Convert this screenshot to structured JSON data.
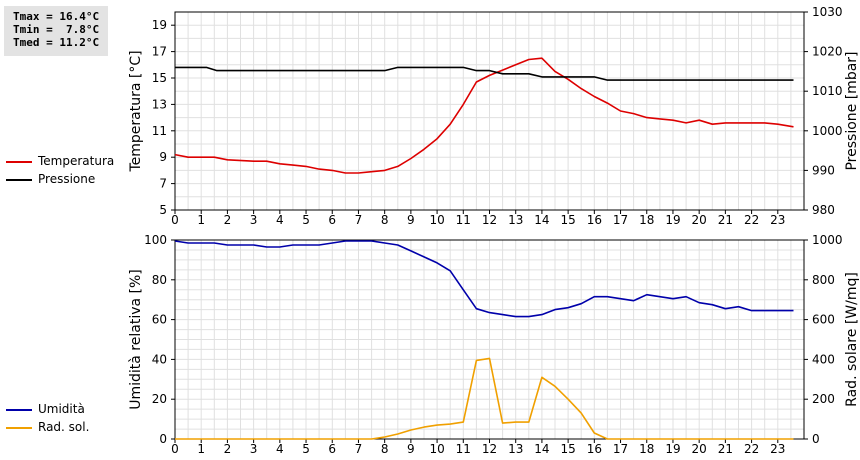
{
  "stats": [
    "Tmax = 16.4°C",
    "Tmin =  7.8°C",
    "Tmed = 11.2°C"
  ],
  "chart_data": [
    {
      "type": "line",
      "xlim": [
        0,
        24
      ],
      "x_ticks": [
        0,
        1,
        2,
        3,
        4,
        5,
        6,
        7,
        8,
        9,
        10,
        11,
        12,
        13,
        14,
        15,
        16,
        17,
        18,
        19,
        20,
        21,
        22,
        23
      ],
      "ylabel": "Temperatura [°C]",
      "ylim": [
        5,
        20
      ],
      "y_ticks": [
        5,
        7,
        9,
        11,
        13,
        15,
        17,
        19
      ],
      "y2label": "Pressione [mbar]",
      "y2lim": [
        980,
        1030
      ],
      "y2_ticks": [
        980,
        990,
        1000,
        1010,
        1020,
        1030
      ],
      "grid": true,
      "legend_position": "left",
      "series": [
        {
          "name": "Temperatura",
          "color": "#dd0000",
          "axis": "left",
          "points": [
            [
              0,
              9.2
            ],
            [
              0.5,
              9.0
            ],
            [
              1.5,
              9.0
            ],
            [
              2,
              8.8
            ],
            [
              3,
              8.7
            ],
            [
              3.5,
              8.7
            ],
            [
              4,
              8.5
            ],
            [
              4.5,
              8.4
            ],
            [
              5,
              8.3
            ],
            [
              5.5,
              8.1
            ],
            [
              6,
              8.0
            ],
            [
              6.5,
              7.8
            ],
            [
              7,
              7.8
            ],
            [
              7.5,
              7.9
            ],
            [
              8,
              8.0
            ],
            [
              8.5,
              8.3
            ],
            [
              9,
              8.9
            ],
            [
              9.5,
              9.6
            ],
            [
              10,
              10.4
            ],
            [
              10.5,
              11.5
            ],
            [
              11,
              13.0
            ],
            [
              11.5,
              14.7
            ],
            [
              12,
              15.2
            ],
            [
              12.5,
              15.6
            ],
            [
              13,
              16.0
            ],
            [
              13.5,
              16.4
            ],
            [
              14,
              16.5
            ],
            [
              14.5,
              15.5
            ],
            [
              15,
              14.9
            ],
            [
              15.5,
              14.2
            ],
            [
              16,
              13.6
            ],
            [
              16.5,
              13.1
            ],
            [
              17,
              12.5
            ],
            [
              17.5,
              12.3
            ],
            [
              18,
              12.0
            ],
            [
              18.5,
              11.9
            ],
            [
              19,
              11.8
            ],
            [
              19.5,
              11.6
            ],
            [
              20,
              11.8
            ],
            [
              20.5,
              11.5
            ],
            [
              21,
              11.6
            ],
            [
              21.5,
              11.6
            ],
            [
              22,
              11.6
            ],
            [
              22.5,
              11.6
            ],
            [
              23,
              11.5
            ],
            [
              23.6,
              11.3
            ]
          ]
        },
        {
          "name": "Pressione",
          "color": "#000000",
          "axis": "right",
          "points": [
            [
              0,
              1016
            ],
            [
              1.2,
              1016
            ],
            [
              1.6,
              1015.2
            ],
            [
              8,
              1015.2
            ],
            [
              8.5,
              1016
            ],
            [
              11,
              1016
            ],
            [
              11.5,
              1015.2
            ],
            [
              12,
              1015.2
            ],
            [
              12.5,
              1014.4
            ],
            [
              13.5,
              1014.4
            ],
            [
              14,
              1013.6
            ],
            [
              16,
              1013.6
            ],
            [
              16.5,
              1012.8
            ],
            [
              23.6,
              1012.8
            ]
          ]
        }
      ]
    },
    {
      "type": "line",
      "xlim": [
        0,
        24
      ],
      "x_ticks": [
        0,
        1,
        2,
        3,
        4,
        5,
        6,
        7,
        8,
        9,
        10,
        11,
        12,
        13,
        14,
        15,
        16,
        17,
        18,
        19,
        20,
        21,
        22,
        23
      ],
      "ylabel": "Umidità relativa [%]",
      "ylim": [
        0,
        100
      ],
      "y_ticks": [
        0,
        20,
        40,
        60,
        80,
        100
      ],
      "y2label": "Rad. solare [W/mq]",
      "y2lim": [
        0,
        1000
      ],
      "y2_ticks": [
        0,
        200,
        400,
        600,
        800,
        1000
      ],
      "grid": true,
      "legend_position": "left",
      "series": [
        {
          "name": "Umidità",
          "color": "#0000aa",
          "axis": "left",
          "points": [
            [
              0,
              99.5
            ],
            [
              0.5,
              98.5
            ],
            [
              1.5,
              98.5
            ],
            [
              2,
              97.5
            ],
            [
              3,
              97.5
            ],
            [
              3.5,
              96.5
            ],
            [
              4,
              96.5
            ],
            [
              4.5,
              97.5
            ],
            [
              5.5,
              97.5
            ],
            [
              6,
              98.5
            ],
            [
              6.5,
              99.5
            ],
            [
              7,
              99.5
            ],
            [
              7.5,
              99.5
            ],
            [
              8,
              98.5
            ],
            [
              8.5,
              97.5
            ],
            [
              9,
              94.5
            ],
            [
              9.5,
              91.5
            ],
            [
              10,
              88.5
            ],
            [
              10.5,
              84.5
            ],
            [
              11,
              75
            ],
            [
              11.5,
              65.5
            ],
            [
              12,
              63.5
            ],
            [
              12.5,
              62.5
            ],
            [
              13,
              61.5
            ],
            [
              13.5,
              61.5
            ],
            [
              14,
              62.5
            ],
            [
              14.5,
              65
            ],
            [
              15,
              66
            ],
            [
              15.5,
              68
            ],
            [
              16,
              71.5
            ],
            [
              16.5,
              71.5
            ],
            [
              17,
              70.5
            ],
            [
              17.5,
              69.5
            ],
            [
              18,
              72.5
            ],
            [
              18.5,
              71.5
            ],
            [
              19,
              70.5
            ],
            [
              19.5,
              71.5
            ],
            [
              20,
              68.5
            ],
            [
              20.5,
              67.5
            ],
            [
              21,
              65.5
            ],
            [
              21.5,
              66.5
            ],
            [
              22,
              64.5
            ],
            [
              23,
              64.5
            ],
            [
              23.6,
              64.5
            ]
          ]
        },
        {
          "name": "Rad. sol.",
          "color": "#f0a000",
          "axis": "right",
          "points": [
            [
              0,
              0
            ],
            [
              7.5,
              0
            ],
            [
              8,
              10
            ],
            [
              8.5,
              25
            ],
            [
              9,
              45
            ],
            [
              9.5,
              60
            ],
            [
              10,
              70
            ],
            [
              10.5,
              75
            ],
            [
              11,
              85
            ],
            [
              11.5,
              395
            ],
            [
              12,
              405
            ],
            [
              12.5,
              80
            ],
            [
              13,
              85
            ],
            [
              13.5,
              85
            ],
            [
              14,
              310
            ],
            [
              14.5,
              265
            ],
            [
              15,
              200
            ],
            [
              15.5,
              130
            ],
            [
              16,
              30
            ],
            [
              16.5,
              0
            ],
            [
              23.6,
              0
            ]
          ]
        }
      ]
    }
  ]
}
